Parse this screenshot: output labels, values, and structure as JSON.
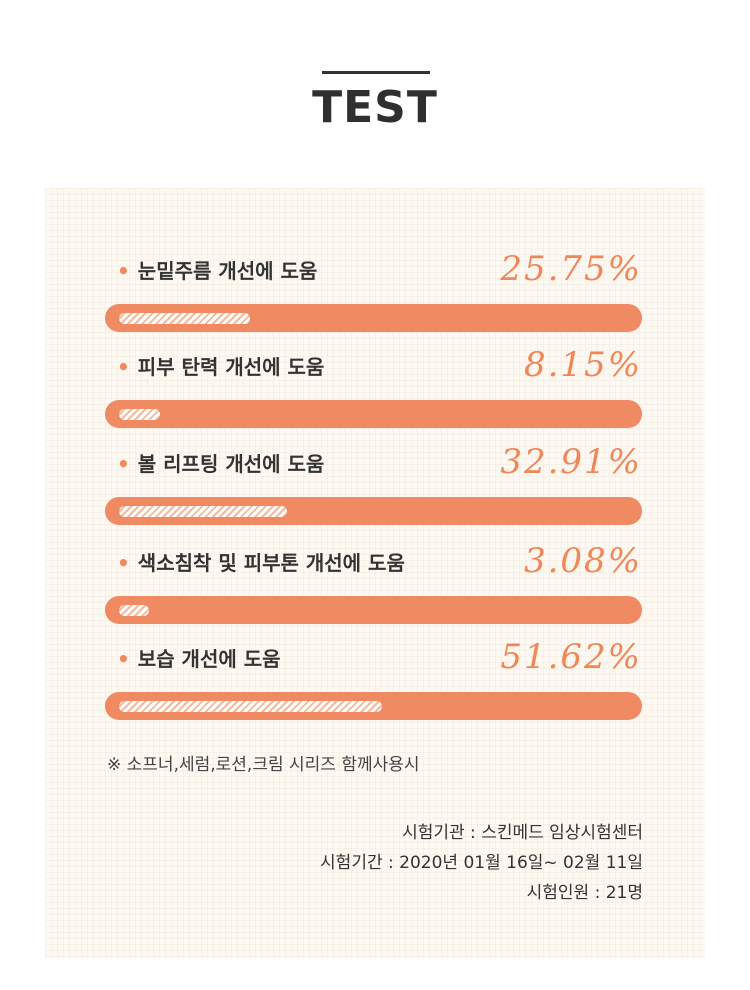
{
  "title": "TEST",
  "results": [
    {
      "label": "눈밑주름 개선에 도움",
      "value": "25.75%",
      "percent": 25.75
    },
    {
      "label": "피부 탄력 개선에 도움",
      "value": "8.15%",
      "percent": 8.15
    },
    {
      "label": "볼 리프팅 개선에 도움",
      "value": "32.91%",
      "percent": 32.91
    },
    {
      "label": "색소침착 및 피부톤 개선에 도움",
      "value": "3.08%",
      "percent": 3.08
    },
    {
      "label": "보습 개선에 도움",
      "value": "51.62%",
      "percent": 51.62
    }
  ],
  "note": "※ 소프너,세럼,로션,크림 시리즈 함께사용시",
  "info": {
    "institution": "시험기관 : 스킨메드 임상시험센터",
    "period": "시험기간 : 2020년 01월 16일~ 02월 11일",
    "participants": "시험인원 : 21명"
  },
  "colors": {
    "accent": "#ef8a62",
    "accent_text": "#ef8758",
    "panel_bg": "#fdf8f1",
    "stripe": "#f4b89b"
  }
}
